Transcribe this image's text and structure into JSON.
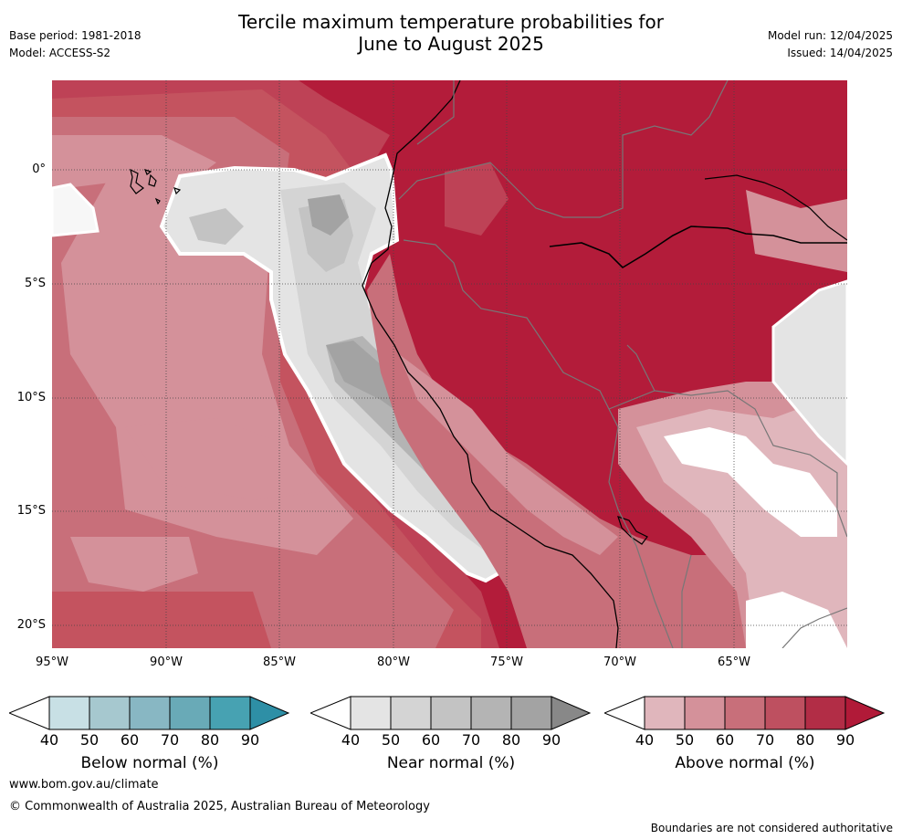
{
  "title_line1": "Tercile maximum temperature probabilities for",
  "title_line2": "June to August 2025",
  "base_period": "Base period: 1981-2018",
  "model": "Model: ACCESS-S2",
  "model_run": "Model run: 12/04/2025",
  "issued": "Issued: 14/04/2025",
  "lat_ticks": [
    "0°",
    "5°S",
    "10°S",
    "15°S",
    "20°S"
  ],
  "lon_ticks": [
    "95°W",
    "90°W",
    "85°W",
    "80°W",
    "75°W",
    "70°W",
    "65°W"
  ],
  "colorbars": [
    {
      "label": "Below normal (%)",
      "ticks": [
        "40",
        "50",
        "60",
        "70",
        "80",
        "90"
      ],
      "colors": [
        "#ffffff",
        "#c8e0e5",
        "#a6c8cf",
        "#88b7c3",
        "#69aab7",
        "#47a2b2",
        "#2e8fa6"
      ]
    },
    {
      "label": "Near normal (%)",
      "ticks": [
        "40",
        "50",
        "60",
        "70",
        "80",
        "90"
      ],
      "colors": [
        "#ffffff",
        "#e4e4e4",
        "#d4d4d4",
        "#c3c3c3",
        "#b4b4b4",
        "#a3a3a3",
        "#888888"
      ]
    },
    {
      "label": "Above normal (%)",
      "ticks": [
        "40",
        "50",
        "60",
        "70",
        "80",
        "90"
      ],
      "colors": [
        "#ffffff",
        "#e0b6bc",
        "#d4919a",
        "#c86f7a",
        "#be5060",
        "#b22d46",
        "#b11a38"
      ]
    }
  ],
  "website": "www.bom.gov.au/climate",
  "copyright": "© Commonwealth of Australia 2025, Australian Bureau of Meteorology",
  "disclaimer": "Boundaries are not considered authoritative"
}
